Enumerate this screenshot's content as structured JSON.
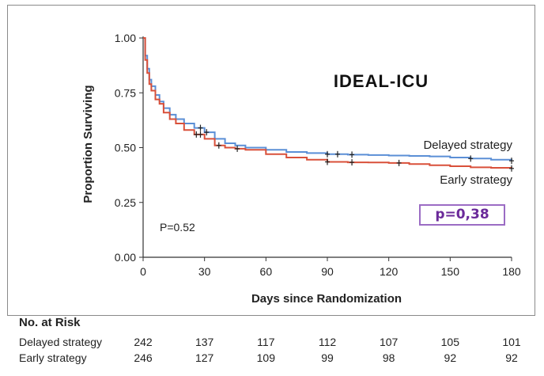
{
  "chart_data": {
    "type": "line",
    "title": "IDEAL-ICU",
    "xlabel": "Days since Randomization",
    "ylabel": "Proportion Surviving",
    "xlim": [
      0,
      180
    ],
    "ylim": [
      0,
      1
    ],
    "xticks": [
      0,
      30,
      60,
      90,
      120,
      150,
      180
    ],
    "yticks": [
      "0.00",
      "0.25",
      "0.50",
      "0.75",
      "1.00"
    ],
    "grid": false,
    "annotations": {
      "p_value_plot": "P=0.52",
      "p_value_box": "p=0,38"
    },
    "series": [
      {
        "name": "Delayed strategy",
        "color": "#5b8fd6",
        "x": [
          0,
          1,
          2,
          3,
          4,
          6,
          8,
          10,
          13,
          16,
          20,
          25,
          30,
          35,
          40,
          45,
          50,
          60,
          70,
          80,
          90,
          100,
          110,
          120,
          130,
          140,
          150,
          160,
          170,
          180
        ],
        "y": [
          1.0,
          0.92,
          0.86,
          0.81,
          0.78,
          0.74,
          0.71,
          0.68,
          0.65,
          0.63,
          0.61,
          0.59,
          0.57,
          0.54,
          0.52,
          0.51,
          0.5,
          0.49,
          0.48,
          0.475,
          0.47,
          0.468,
          0.466,
          0.464,
          0.462,
          0.46,
          0.455,
          0.45,
          0.445,
          0.44
        ],
        "censored_x": [
          28,
          31,
          90,
          95,
          102,
          160,
          180
        ]
      },
      {
        "name": "Early strategy",
        "color": "#d9503a",
        "x": [
          0,
          1,
          2,
          3,
          4,
          6,
          8,
          10,
          13,
          16,
          20,
          25,
          30,
          35,
          40,
          45,
          50,
          60,
          70,
          80,
          90,
          100,
          110,
          120,
          130,
          140,
          150,
          160,
          170,
          180
        ],
        "y": [
          1.0,
          0.9,
          0.84,
          0.79,
          0.76,
          0.72,
          0.7,
          0.66,
          0.63,
          0.61,
          0.58,
          0.56,
          0.54,
          0.51,
          0.5,
          0.495,
          0.49,
          0.47,
          0.455,
          0.445,
          0.435,
          0.433,
          0.432,
          0.43,
          0.425,
          0.42,
          0.415,
          0.41,
          0.408,
          0.405
        ],
        "censored_x": [
          26,
          28,
          37,
          46,
          90,
          102,
          125,
          180
        ]
      }
    ],
    "risk_table": {
      "heading": "No. at Risk",
      "days": [
        0,
        30,
        60,
        90,
        120,
        150,
        180
      ],
      "rows": [
        {
          "name": "Delayed strategy",
          "values": [
            "242",
            "137",
            "117",
            "112",
            "107",
            "105",
            "101"
          ]
        },
        {
          "name": "Early strategy",
          "values": [
            "246",
            "127",
            "109",
            "99",
            "98",
            "92",
            "92"
          ]
        }
      ]
    }
  }
}
